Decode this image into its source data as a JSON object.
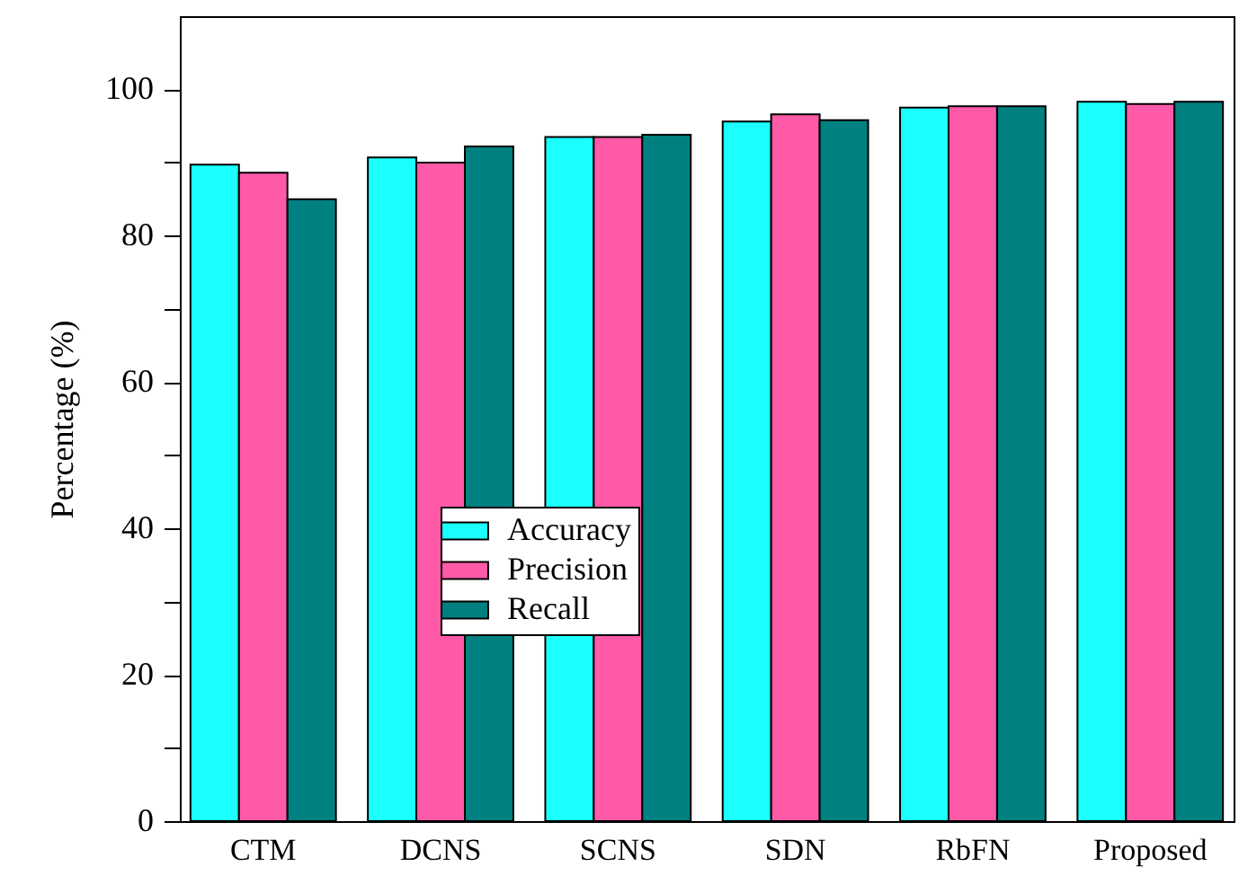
{
  "chart_data": {
    "type": "bar",
    "ylabel": "Percentage (%)",
    "categories": [
      "CTM",
      "DCNS",
      "SCNS",
      "SDN",
      "RbFN",
      "Proposed"
    ],
    "series": [
      {
        "name": "Accuracy",
        "color": "#1bffff",
        "values": [
          89.7,
          90.7,
          93.5,
          95.6,
          97.5,
          98.3
        ]
      },
      {
        "name": "Precision",
        "color": "#ff5aa8",
        "values": [
          88.6,
          90.0,
          93.5,
          96.6,
          97.7,
          98.0
        ]
      },
      {
        "name": "Recall",
        "color": "#008080",
        "values": [
          85.0,
          92.2,
          93.8,
          95.8,
          97.7,
          98.3
        ]
      }
    ],
    "ylim": [
      0,
      110
    ],
    "yticks": [
      0,
      {
        "value": 10,
        "label": null
      },
      20,
      {
        "value": 30,
        "label": null
      },
      40,
      {
        "value": 50,
        "label": null
      },
      60,
      {
        "value": 70,
        "label": null
      },
      80,
      {
        "value": 90,
        "label": null
      },
      100
    ],
    "grid": false,
    "legend": "center"
  }
}
